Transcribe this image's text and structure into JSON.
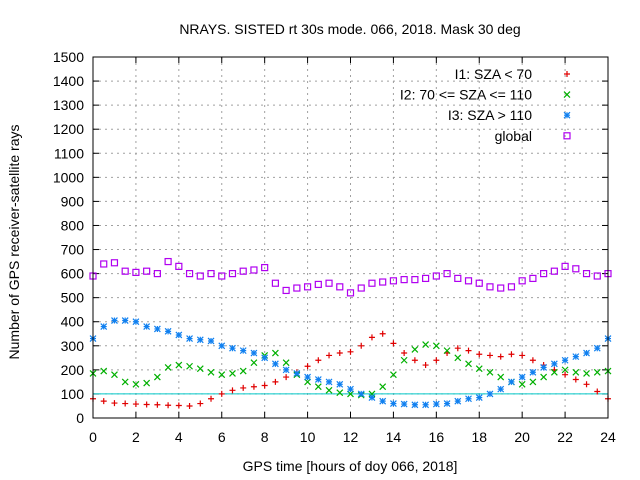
{
  "chart_data": {
    "type": "scatter",
    "title": "NRAYS. SISTED rt 30s mode. 066, 2018. Mask 30 deg",
    "xlabel": "GPS time [hours of doy 066, 2018]",
    "ylabel": "Number of GPS receiver-satellite rays",
    "xlim": [
      0,
      24
    ],
    "ylim": [
      0,
      1500
    ],
    "xticks": [
      "0",
      "2",
      "4",
      "6",
      "8",
      "10",
      "12",
      "14",
      "16",
      "18",
      "20",
      "22",
      "24"
    ],
    "yticks": [
      "0",
      "100",
      "200",
      "300",
      "400",
      "500",
      "600",
      "700",
      "800",
      "900",
      "1000",
      "1100",
      "1200",
      "1300",
      "1400",
      "1500"
    ],
    "grid": true,
    "legend_position": "top-right",
    "reference_line": {
      "y": 100,
      "color": "#00c8c8"
    },
    "series": [
      {
        "name": "I1: SZA < 70",
        "marker": "+",
        "color": "#e00000",
        "x": [
          0,
          0.5,
          1,
          1.5,
          2,
          2.5,
          3,
          3.5,
          4,
          4.5,
          5,
          5.5,
          6,
          6.5,
          7,
          7.5,
          8,
          8.5,
          9,
          9.5,
          10,
          10.5,
          11,
          11.5,
          12,
          12.5,
          13,
          13.5,
          14,
          14.5,
          15,
          15.5,
          16,
          16.5,
          17,
          17.5,
          18,
          18.5,
          19,
          19.5,
          20,
          20.5,
          21,
          21.5,
          22,
          22.5,
          23,
          23.5,
          24
        ],
        "y": [
          80,
          70,
          62,
          60,
          58,
          56,
          55,
          53,
          52,
          50,
          60,
          80,
          100,
          115,
          125,
          130,
          135,
          150,
          170,
          190,
          215,
          240,
          260,
          270,
          275,
          300,
          335,
          350,
          310,
          270,
          240,
          220,
          240,
          270,
          290,
          280,
          265,
          260,
          255,
          265,
          260,
          240,
          220,
          200,
          180,
          160,
          140,
          110,
          80
        ]
      },
      {
        "name": "I2: 70 <= SZA <= 110",
        "marker": "x",
        "color": "#00b000",
        "x": [
          0,
          0.5,
          1,
          1.5,
          2,
          2.5,
          3,
          3.5,
          4,
          4.5,
          5,
          5.5,
          6,
          6.5,
          7,
          7.5,
          8,
          8.5,
          9,
          9.5,
          10,
          10.5,
          11,
          11.5,
          12,
          12.5,
          13,
          13.5,
          14,
          14.5,
          15,
          15.5,
          16,
          16.5,
          17,
          17.5,
          18,
          18.5,
          19,
          19.5,
          20,
          20.5,
          21,
          21.5,
          22,
          22.5,
          23,
          23.5,
          24
        ],
        "y": [
          185,
          195,
          180,
          150,
          140,
          145,
          170,
          210,
          220,
          215,
          205,
          190,
          180,
          185,
          195,
          230,
          260,
          270,
          230,
          180,
          150,
          130,
          115,
          105,
          100,
          95,
          100,
          130,
          180,
          240,
          285,
          305,
          300,
          280,
          250,
          225,
          205,
          190,
          170,
          150,
          140,
          150,
          170,
          190,
          200,
          190,
          185,
          190,
          195
        ]
      },
      {
        "name": "I3: SZA > 110",
        "marker": "*",
        "color": "#1080f0",
        "x": [
          0,
          0.5,
          1,
          1.5,
          2,
          2.5,
          3,
          3.5,
          4,
          4.5,
          5,
          5.5,
          6,
          6.5,
          7,
          7.5,
          8,
          8.5,
          9,
          9.5,
          10,
          10.5,
          11,
          11.5,
          12,
          12.5,
          13,
          13.5,
          14,
          14.5,
          15,
          15.5,
          16,
          16.5,
          17,
          17.5,
          18,
          18.5,
          19,
          19.5,
          20,
          20.5,
          21,
          21.5,
          22,
          22.5,
          23,
          23.5,
          24
        ],
        "y": [
          330,
          380,
          405,
          405,
          400,
          380,
          370,
          360,
          345,
          330,
          325,
          320,
          300,
          290,
          280,
          270,
          250,
          225,
          200,
          185,
          170,
          160,
          150,
          140,
          120,
          100,
          85,
          70,
          60,
          58,
          55,
          55,
          58,
          60,
          70,
          80,
          85,
          100,
          120,
          150,
          170,
          190,
          210,
          225,
          240,
          255,
          270,
          290,
          330
        ]
      },
      {
        "name": "global",
        "marker": "square",
        "color": "#b000f0",
        "x": [
          0,
          0.5,
          1,
          1.5,
          2,
          2.5,
          3,
          3.5,
          4,
          4.5,
          5,
          5.5,
          6,
          6.5,
          7,
          7.5,
          8,
          8.5,
          9,
          9.5,
          10,
          10.5,
          11,
          11.5,
          12,
          12.5,
          13,
          13.5,
          14,
          14.5,
          15,
          15.5,
          16,
          16.5,
          17,
          17.5,
          18,
          18.5,
          19,
          19.5,
          20,
          20.5,
          21,
          21.5,
          22,
          22.5,
          23,
          23.5,
          24
        ],
        "y": [
          590,
          640,
          645,
          610,
          605,
          610,
          600,
          650,
          630,
          600,
          590,
          600,
          590,
          600,
          610,
          615,
          625,
          560,
          530,
          540,
          545,
          555,
          560,
          545,
          520,
          540,
          560,
          565,
          570,
          575,
          575,
          580,
          590,
          600,
          580,
          570,
          560,
          545,
          540,
          545,
          570,
          580,
          600,
          610,
          630,
          620,
          600,
          590,
          600
        ]
      }
    ]
  }
}
